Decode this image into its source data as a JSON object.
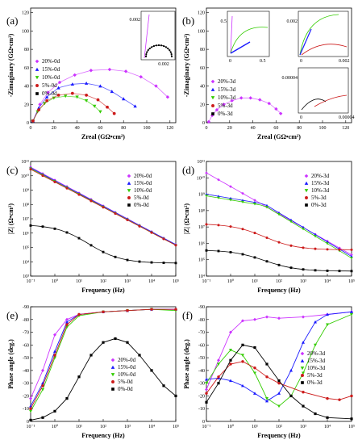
{
  "colors": {
    "20%": "#cc33ff",
    "15%": "#1a1aff",
    "10%": "#33cc00",
    "5%": "#cc1a1a",
    "0%": "#000000",
    "fit": "#888888",
    "fit20": "#aa00ff",
    "fit5": "#aa0000"
  },
  "chart_data": [
    {
      "panel": "(a)",
      "type": "scatter",
      "xlabel": "Zreal (GΩ•cm²)",
      "ylabel": "-Zimaginary (GΩ•cm²)",
      "xlim": [
        0,
        125
      ],
      "ylim": [
        0,
        125
      ],
      "xticks": [
        0,
        20,
        40,
        60,
        80,
        100,
        120
      ],
      "yticks": [
        0,
        20,
        40,
        60,
        80,
        100,
        120
      ],
      "legend_position": "top-left",
      "series": [
        {
          "name": "20%-0d",
          "marker": "diamond",
          "color_key": "20%",
          "points": [
            [
              2,
              2
            ],
            [
              8,
              20
            ],
            [
              15,
              33
            ],
            [
              25,
              44
            ],
            [
              38,
              52
            ],
            [
              52,
              57
            ],
            [
              68,
              58
            ],
            [
              82,
              56
            ],
            [
              95,
              50
            ],
            [
              108,
              40
            ],
            [
              118,
              28
            ]
          ]
        },
        {
          "name": "15%-0d",
          "marker": "triangle-up",
          "color_key": "15%",
          "points": [
            [
              2,
              2
            ],
            [
              7,
              16
            ],
            [
              14,
              28
            ],
            [
              24,
              38
            ],
            [
              36,
              42
            ],
            [
              48,
              43
            ],
            [
              60,
              40
            ],
            [
              70,
              34
            ],
            [
              80,
              26
            ],
            [
              90,
              18
            ]
          ]
        },
        {
          "name": "10%-0d",
          "marker": "triangle-down",
          "color_key": "10%",
          "points": [
            [
              2,
              2
            ],
            [
              6,
              12
            ],
            [
              12,
              21
            ],
            [
              20,
              27
            ],
            [
              30,
              29
            ],
            [
              40,
              28
            ],
            [
              48,
              24
            ],
            [
              55,
              18
            ],
            [
              60,
              12
            ]
          ]
        },
        {
          "name": "5%-0d",
          "marker": "circle",
          "color_key": "5%",
          "points": [
            [
              2,
              2
            ],
            [
              7,
              14
            ],
            [
              14,
              24
            ],
            [
              24,
              30
            ],
            [
              36,
              32
            ],
            [
              48,
              30
            ],
            [
              58,
              25
            ],
            [
              66,
              17
            ],
            [
              72,
              10
            ]
          ]
        },
        {
          "name": "0%-0d",
          "marker": "square",
          "color_key": "0%",
          "points": [
            [
              0,
              0
            ],
            [
              0.5,
              0.3
            ]
          ]
        }
      ],
      "inset": {
        "ytick": "0.002",
        "xtick": "0.002",
        "curve": "0%-0d"
      }
    },
    {
      "panel": "(b)",
      "type": "scatter",
      "xlabel": "Zreal (GΩ•cm²)",
      "ylabel": "-Zimaginary (GΩ•cm²)",
      "xlim": [
        0,
        125
      ],
      "ylim": [
        0,
        125
      ],
      "xticks": [
        0,
        20,
        40,
        60,
        80,
        100,
        120
      ],
      "yticks": [
        0,
        20,
        40,
        60,
        80,
        100,
        120
      ],
      "legend_position": "middle-left",
      "series": [
        {
          "name": "20%-3d",
          "marker": "diamond",
          "color_key": "20%",
          "points": [
            [
              2,
              1
            ],
            [
              5,
              8
            ],
            [
              9,
              14
            ],
            [
              15,
              20
            ],
            [
              22,
              24
            ],
            [
              30,
              27
            ],
            [
              38,
              27
            ],
            [
              46,
              25
            ],
            [
              54,
              21
            ],
            [
              60,
              15
            ],
            [
              64,
              10
            ]
          ]
        },
        {
          "name": "15%-3d",
          "marker": "triangle-up",
          "color_key": "15%",
          "points": [
            [
              0,
              0
            ],
            [
              0.3,
              0.5
            ]
          ]
        },
        {
          "name": "10%-3d",
          "marker": "triangle-down",
          "color_key": "10%",
          "points": [
            [
              0,
              0
            ],
            [
              0.3,
              0.3
            ]
          ]
        },
        {
          "name": "5%-3d",
          "marker": "circle",
          "color_key": "5%",
          "points": [
            [
              0,
              0
            ],
            [
              0.002,
              0.001
            ]
          ]
        },
        {
          "name": "0%-3d",
          "marker": "square",
          "color_key": "0%",
          "points": [
            [
              0,
              0
            ],
            [
              4e-05,
              2e-05
            ]
          ]
        }
      ],
      "insets": [
        {
          "xticks": [
            "0",
            "0.5"
          ],
          "yticks": [
            "0.5"
          ]
        },
        {
          "xticks": [
            "0",
            "0.002"
          ],
          "yticks": [
            "0.002"
          ]
        },
        {
          "xticks": [
            "0",
            "0.00004"
          ],
          "yticks": [
            "0.00004"
          ]
        }
      ]
    },
    {
      "panel": "(c)",
      "type": "line",
      "xlabel": "Frequency (Hz)",
      "ylabel": "|Z| (Ω•cm²)",
      "xscale": "log",
      "yscale": "log",
      "xlim": [
        0.1,
        100000
      ],
      "ylim": [
        1000,
        100000000000
      ],
      "xticks": [
        "10⁻¹",
        "10⁰",
        "10¹",
        "10²",
        "10³",
        "10⁴",
        "10⁵"
      ],
      "yticks": [
        "10³",
        "10⁴",
        "10⁵",
        "10⁶",
        "10⁷",
        "10⁸",
        "10⁹",
        "10¹⁰",
        "10¹¹"
      ],
      "legend_position": "top-right",
      "series": [
        {
          "name": "20%-0d",
          "marker": "diamond",
          "color_key": "20%",
          "logZ_start": 10.6,
          "logZ_end": 5.2,
          "type": "capacitive"
        },
        {
          "name": "15%-0d",
          "marker": "triangle-up",
          "color_key": "15%",
          "logZ_start": 10.55,
          "logZ_end": 5.2,
          "type": "capacitive"
        },
        {
          "name": "10%-0d",
          "marker": "triangle-down",
          "color_key": "10%",
          "logZ_start": 10.5,
          "logZ_end": 5.15,
          "type": "capacitive"
        },
        {
          "name": "5%-0d",
          "marker": "circle",
          "color_key": "5%",
          "logZ_start": 10.45,
          "logZ_end": 5.15,
          "type": "capacitive"
        },
        {
          "name": "0%-0d",
          "marker": "square",
          "color_key": "0%",
          "logZ_start": 6.6,
          "logZ_end": 3.9,
          "type": "rc"
        }
      ]
    },
    {
      "panel": "(d)",
      "type": "line",
      "xlabel": "Frequency (Hz)",
      "ylabel": "|Z| (Ω•cm²)",
      "xscale": "log",
      "yscale": "log",
      "xlim": [
        0.1,
        100000
      ],
      "ylim": [
        10000,
        100000000000
      ],
      "xticks": [
        "10⁻¹",
        "10⁰",
        "10¹",
        "10²",
        "10³",
        "10⁴",
        "10⁵"
      ],
      "yticks": [
        "10⁴",
        "10⁵",
        "10⁶",
        "10⁷",
        "10⁸",
        "10⁹",
        "10¹⁰",
        "10¹¹"
      ],
      "legend_position": "top-right",
      "series": [
        {
          "name": "20%-3d",
          "marker": "diamond",
          "color_key": "20%",
          "logZ_start": 10.3,
          "logZ_end": 5.3,
          "type": "capacitive"
        },
        {
          "name": "15%-3d",
          "marker": "triangle-up",
          "color_key": "15%",
          "logZ_start": 9.0,
          "logZ_end": 5.2,
          "type": "mixed"
        },
        {
          "name": "10%-3d",
          "marker": "triangle-down",
          "color_key": "10%",
          "logZ_start": 8.9,
          "logZ_end": 5.1,
          "type": "mixed"
        },
        {
          "name": "5%-3d",
          "marker": "circle",
          "color_key": "5%",
          "logZ_start": 7.2,
          "logZ_end": 5.6,
          "type": "rc"
        },
        {
          "name": "0%-3d",
          "marker": "square",
          "color_key": "0%",
          "logZ_start": 5.6,
          "logZ_end": 4.3,
          "type": "rc"
        }
      ]
    },
    {
      "panel": "(e)",
      "type": "line",
      "xlabel": "Frequency (Hz)",
      "ylabel": "Phase angle (deg.)",
      "xscale": "log",
      "xlim": [
        0.1,
        100000
      ],
      "ylim": [
        0,
        -90
      ],
      "xticks": [
        "10⁻¹",
        "10⁰",
        "10¹",
        "10²",
        "10³",
        "10⁴",
        "10⁵"
      ],
      "yticks": [
        "0",
        "-10",
        "-20",
        "-30",
        "-40",
        "-50",
        "-60",
        "-70",
        "-80",
        "-90"
      ],
      "legend_position": "center-right",
      "series": [
        {
          "name": "20%-0d",
          "marker": "diamond",
          "color_key": "20%",
          "points": [
            [
              -1,
              -18
            ],
            [
              -0.5,
              -40
            ],
            [
              0,
              -68
            ],
            [
              0.5,
              -80
            ],
            [
              1,
              -84
            ],
            [
              2,
              -86
            ],
            [
              3,
              -87
            ],
            [
              4,
              -88
            ],
            [
              5,
              -88
            ]
          ]
        },
        {
          "name": "15%-0d",
          "marker": "triangle-up",
          "color_key": "15%",
          "points": [
            [
              -1,
              -12
            ],
            [
              -0.5,
              -30
            ],
            [
              0,
              -55
            ],
            [
              0.5,
              -78
            ],
            [
              1,
              -84
            ],
            [
              2,
              -86
            ],
            [
              3,
              -87
            ],
            [
              4,
              -88
            ],
            [
              5,
              -88
            ]
          ]
        },
        {
          "name": "10%-0d",
          "marker": "triangle-down",
          "color_key": "10%",
          "points": [
            [
              -1,
              -8
            ],
            [
              -0.5,
              -25
            ],
            [
              0,
              -50
            ],
            [
              0.5,
              -74
            ],
            [
              1,
              -83
            ],
            [
              2,
              -86
            ],
            [
              3,
              -87
            ],
            [
              4,
              -88
            ],
            [
              5,
              -87
            ]
          ]
        },
        {
          "name": "5%-0d",
          "marker": "circle",
          "color_key": "5%",
          "points": [
            [
              -1,
              -10
            ],
            [
              -0.5,
              -28
            ],
            [
              0,
              -52
            ],
            [
              0.5,
              -76
            ],
            [
              1,
              -84
            ],
            [
              2,
              -86
            ],
            [
              3,
              -87
            ],
            [
              4,
              -88
            ],
            [
              5,
              -88
            ]
          ]
        },
        {
          "name": "0%-0d",
          "marker": "square",
          "color_key": "0%",
          "points": [
            [
              -1,
              -1
            ],
            [
              -0.5,
              -3
            ],
            [
              0,
              -8
            ],
            [
              0.5,
              -18
            ],
            [
              1,
              -35
            ],
            [
              1.5,
              -52
            ],
            [
              2,
              -62
            ],
            [
              2.5,
              -65
            ],
            [
              3,
              -62
            ],
            [
              3.5,
              -52
            ],
            [
              4,
              -40
            ],
            [
              4.5,
              -28
            ],
            [
              5,
              -20
            ]
          ]
        }
      ]
    },
    {
      "panel": "(f)",
      "type": "line",
      "xlabel": "Frequency (Hz)",
      "ylabel": "Phase angle (deg.)",
      "xscale": "log",
      "xlim": [
        0.1,
        100000
      ],
      "ylim": [
        0,
        -90
      ],
      "xticks": [
        "10⁻¹",
        "10⁰",
        "10¹",
        "10²",
        "10³",
        "10⁴",
        "10⁵"
      ],
      "yticks": [
        "0",
        "-10",
        "-20",
        "-30",
        "-40",
        "-50",
        "-60",
        "-70",
        "-80",
        "-90"
      ],
      "legend_position": "center-right",
      "series": [
        {
          "name": "20%-3d",
          "marker": "diamond",
          "color_key": "20%",
          "points": [
            [
              -1,
              -25
            ],
            [
              -0.5,
              -48
            ],
            [
              0,
              -70
            ],
            [
              0.5,
              -79
            ],
            [
              1,
              -80
            ],
            [
              1.5,
              -82
            ],
            [
              2,
              -81
            ],
            [
              3,
              -82
            ],
            [
              4,
              -84
            ],
            [
              5,
              -86
            ]
          ]
        },
        {
          "name": "15%-3d",
          "marker": "triangle-up",
          "color_key": "15%",
          "points": [
            [
              -1,
              -33
            ],
            [
              -0.5,
              -34
            ],
            [
              0,
              -32
            ],
            [
              0.5,
              -28
            ],
            [
              1,
              -22
            ],
            [
              1.5,
              -16
            ],
            [
              2,
              -22
            ],
            [
              2.5,
              -40
            ],
            [
              3,
              -62
            ],
            [
              3.5,
              -78
            ],
            [
              4,
              -84
            ],
            [
              5,
              -86
            ]
          ]
        },
        {
          "name": "10%-3d",
          "marker": "triangle-down",
          "color_key": "10%",
          "points": [
            [
              -1,
              -30
            ],
            [
              -0.5,
              -45
            ],
            [
              0,
              -56
            ],
            [
              0.5,
              -52
            ],
            [
              1,
              -38
            ],
            [
              1.5,
              -18
            ],
            [
              2,
              -12
            ],
            [
              2.5,
              -20
            ],
            [
              3,
              -38
            ],
            [
              3.5,
              -60
            ],
            [
              4,
              -76
            ],
            [
              5,
              -84
            ]
          ]
        },
        {
          "name": "5%-3d",
          "marker": "circle",
          "color_key": "5%",
          "points": [
            [
              -1,
              -22
            ],
            [
              -0.5,
              -35
            ],
            [
              0,
              -45
            ],
            [
              0.5,
              -47
            ],
            [
              1,
              -42
            ],
            [
              1.5,
              -35
            ],
            [
              2,
              -30
            ],
            [
              3,
              -23
            ],
            [
              4,
              -18
            ],
            [
              4.5,
              -17
            ],
            [
              5,
              -20
            ]
          ]
        },
        {
          "name": "0%-3d",
          "marker": "square",
          "color_key": "0%",
          "points": [
            [
              -1,
              -15
            ],
            [
              -0.5,
              -30
            ],
            [
              0,
              -48
            ],
            [
              0.5,
              -60
            ],
            [
              1,
              -58
            ],
            [
              1.5,
              -45
            ],
            [
              2,
              -32
            ],
            [
              2.5,
              -20
            ],
            [
              3,
              -12
            ],
            [
              3.5,
              -6
            ],
            [
              4,
              -3
            ],
            [
              5,
              -2
            ]
          ]
        }
      ]
    }
  ]
}
